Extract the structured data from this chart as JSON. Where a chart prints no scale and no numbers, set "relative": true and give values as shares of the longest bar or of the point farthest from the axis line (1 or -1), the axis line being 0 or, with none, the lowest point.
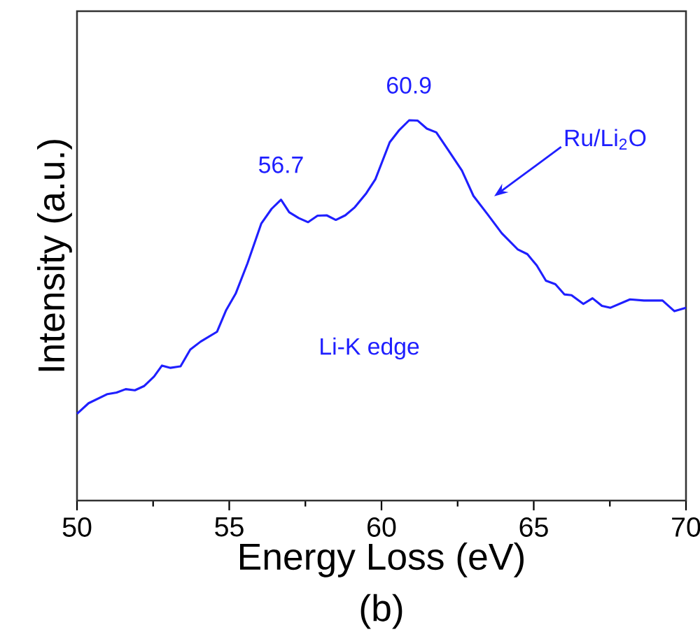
{
  "chart_data": {
    "type": "line",
    "relative": true,
    "xlabel": "Energy Loss (eV)",
    "ylabel": "Intensity (a.u.)",
    "xlim": [
      50,
      70
    ],
    "xticks": [
      50,
      55,
      60,
      65,
      70
    ],
    "x": [
      50.0,
      50.38,
      51.0,
      51.3,
      51.6,
      51.9,
      52.2,
      52.53,
      52.79,
      53.07,
      53.4,
      53.72,
      54.06,
      54.6,
      54.9,
      55.21,
      55.6,
      56.05,
      56.39,
      56.7,
      56.97,
      57.28,
      57.59,
      57.9,
      58.2,
      58.5,
      58.81,
      59.12,
      59.5,
      59.8,
      60.27,
      60.57,
      60.91,
      61.19,
      61.49,
      61.8,
      62.18,
      62.64,
      63.02,
      63.49,
      63.95,
      64.48,
      64.79,
      65.1,
      65.4,
      65.71,
      66.01,
      66.24,
      66.63,
      66.93,
      67.24,
      67.52,
      68.16,
      68.62,
      69.23,
      69.62,
      70.0
    ],
    "series": [
      {
        "name": "Ru/Li$_{2}$O",
        "color": "#1f1fff",
        "values": [
          0.228,
          0.256,
          0.28,
          0.284,
          0.293,
          0.29,
          0.301,
          0.326,
          0.355,
          0.349,
          0.353,
          0.397,
          0.418,
          0.444,
          0.501,
          0.544,
          0.624,
          0.728,
          0.767,
          0.791,
          0.758,
          0.743,
          0.732,
          0.749,
          0.75,
          0.738,
          0.75,
          0.771,
          0.808,
          0.845,
          0.942,
          0.973,
          1.0,
          0.999,
          0.978,
          0.968,
          0.923,
          0.868,
          0.801,
          0.752,
          0.703,
          0.66,
          0.648,
          0.618,
          0.578,
          0.569,
          0.542,
          0.54,
          0.517,
          0.532,
          0.512,
          0.507,
          0.529,
          0.526,
          0.526,
          0.498,
          0.507
        ]
      }
    ],
    "annotations": [
      {
        "text": "56.7",
        "x": 56.7,
        "y": 0.791
      },
      {
        "text": "60.9",
        "x": 60.9,
        "y": 1.0
      },
      "Li-K edge",
      "(b)"
    ]
  }
}
